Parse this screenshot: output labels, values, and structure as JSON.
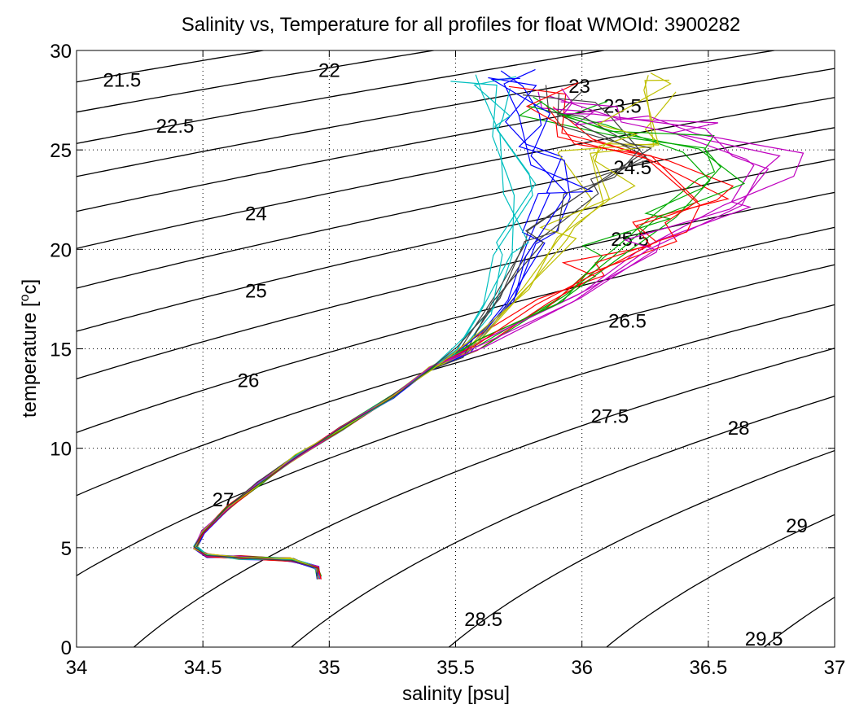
{
  "chart_data": {
    "type": "line",
    "title": "Salinity vs, Temperature for all profiles for float WMOId: 3900282",
    "xlabel": "salinity [psu]",
    "ylabel_main": "temperature [",
    "ylabel_sup": "o",
    "ylabel_end": "c]",
    "xlim": [
      34,
      37
    ],
    "ylim": [
      0,
      30
    ],
    "xticks": [
      34,
      34.5,
      35,
      35.5,
      36,
      36.5,
      37
    ],
    "xtick_labels": [
      "34",
      "34.5",
      "35",
      "35.5",
      "36",
      "36.5",
      "37"
    ],
    "yticks": [
      0,
      5,
      10,
      15,
      20,
      25,
      30
    ],
    "ytick_labels": [
      "0",
      "5",
      "10",
      "15",
      "20",
      "25",
      "30"
    ],
    "grid": true,
    "density_contours": {
      "levels": [
        21.5,
        22,
        22.5,
        23,
        23.5,
        24,
        24.5,
        25,
        25.5,
        26,
        26.5,
        27,
        27.5,
        28,
        28.5,
        29,
        29.5
      ],
      "labels": [
        {
          "text": "21.5",
          "s": 34.18,
          "t": 28.5
        },
        {
          "text": "22",
          "s": 35.0,
          "t": 29.0
        },
        {
          "text": "22.5",
          "s": 34.39,
          "t": 26.2
        },
        {
          "text": "23",
          "s": 35.99,
          "t": 28.2
        },
        {
          "text": "23.5",
          "s": 36.16,
          "t": 27.2
        },
        {
          "text": "24",
          "s": 34.71,
          "t": 21.8
        },
        {
          "text": "24.5",
          "s": 36.2,
          "t": 24.1
        },
        {
          "text": "25",
          "s": 34.71,
          "t": 17.9
        },
        {
          "text": "25.5",
          "s": 36.19,
          "t": 20.5
        },
        {
          "text": "26",
          "s": 34.68,
          "t": 13.4
        },
        {
          "text": "26.5",
          "s": 36.18,
          "t": 16.4
        },
        {
          "text": "27",
          "s": 34.58,
          "t": 7.4
        },
        {
          "text": "27.5",
          "s": 36.11,
          "t": 11.6
        },
        {
          "text": "28",
          "s": 36.62,
          "t": 11.0
        },
        {
          "text": "28.5",
          "s": 35.61,
          "t": 1.4
        },
        {
          "text": "29",
          "s": 36.85,
          "t": 6.1
        },
        {
          "text": "29.5",
          "s": 36.72,
          "t": 0.4
        }
      ]
    },
    "series": [
      {
        "color": "#0000ff",
        "seed": 1
      },
      {
        "color": "#00aa00",
        "seed": 2
      },
      {
        "color": "#ff0000",
        "seed": 3
      },
      {
        "color": "#00bfbf",
        "seed": 4
      },
      {
        "color": "#bf00bf",
        "seed": 5
      },
      {
        "color": "#bfbf00",
        "seed": 6
      },
      {
        "color": "#404040",
        "seed": 7
      },
      {
        "color": "#0000ff",
        "seed": 8
      },
      {
        "color": "#00aa00",
        "seed": 9
      },
      {
        "color": "#ff0000",
        "seed": 10
      },
      {
        "color": "#00bfbf",
        "seed": 11
      },
      {
        "color": "#bf00bf",
        "seed": 12
      },
      {
        "color": "#bfbf00",
        "seed": 13
      },
      {
        "color": "#404040",
        "seed": 14
      },
      {
        "color": "#0000ff",
        "seed": 15
      },
      {
        "color": "#00aa00",
        "seed": 16
      },
      {
        "color": "#ff0000",
        "seed": 17
      },
      {
        "color": "#00bfbf",
        "seed": 18
      },
      {
        "color": "#bf00bf",
        "seed": 19
      },
      {
        "color": "#bfbf00",
        "seed": 20
      },
      {
        "color": "#404040",
        "seed": 21
      },
      {
        "color": "#0000ff",
        "seed": 22
      },
      {
        "color": "#00aa00",
        "seed": 23
      },
      {
        "color": "#ff0000",
        "seed": 24
      },
      {
        "color": "#00bfbf",
        "seed": 25
      },
      {
        "color": "#bf00bf",
        "seed": 26
      },
      {
        "color": "#bfbf00",
        "seed": 27
      },
      {
        "color": "#404040",
        "seed": 28
      }
    ],
    "profile_shape": {
      "deep": [
        [
          34.96,
          3.5
        ],
        [
          34.95,
          4.0
        ],
        [
          34.85,
          4.4
        ],
        [
          34.65,
          4.5
        ],
        [
          34.52,
          4.6
        ],
        [
          34.47,
          5.0
        ],
        [
          34.5,
          5.8
        ],
        [
          34.6,
          7.0
        ],
        [
          34.72,
          8.2
        ],
        [
          34.87,
          9.6
        ],
        [
          35.05,
          11.0
        ],
        [
          35.25,
          12.6
        ],
        [
          35.4,
          14.0
        ]
      ],
      "upper_variants": [
        [
          [
            35.55,
            15.0
          ],
          [
            35.72,
            17.5
          ],
          [
            35.82,
            20.0
          ],
          [
            35.9,
            22.5
          ],
          [
            35.85,
            24.5
          ],
          [
            35.78,
            26.5
          ],
          [
            35.72,
            28.2
          ]
        ],
        [
          [
            35.6,
            15.3
          ],
          [
            35.9,
            17.5
          ],
          [
            36.1,
            19.5
          ],
          [
            36.35,
            21.5
          ],
          [
            36.55,
            23.3
          ],
          [
            36.45,
            25.0
          ],
          [
            36.2,
            26.0
          ],
          [
            35.9,
            27.0
          ]
        ],
        [
          [
            35.58,
            15.2
          ],
          [
            35.85,
            17.3
          ],
          [
            36.05,
            18.8
          ],
          [
            36.3,
            20.5
          ],
          [
            36.5,
            22.5
          ],
          [
            36.3,
            24.5
          ],
          [
            36.0,
            25.5
          ],
          [
            35.8,
            27.5
          ]
        ],
        [
          [
            35.5,
            14.8
          ],
          [
            35.62,
            17.0
          ],
          [
            35.7,
            20.0
          ],
          [
            35.75,
            23.0
          ],
          [
            35.68,
            26.0
          ],
          [
            35.62,
            28.0
          ]
        ],
        [
          [
            35.6,
            15.3
          ],
          [
            36.0,
            17.6
          ],
          [
            36.25,
            19.7
          ],
          [
            36.6,
            22.0
          ],
          [
            36.75,
            24.0
          ],
          [
            36.4,
            25.9
          ],
          [
            36.05,
            26.5
          ],
          [
            35.85,
            27.4
          ]
        ],
        [
          [
            35.55,
            15.0
          ],
          [
            35.78,
            18.0
          ],
          [
            35.95,
            20.5
          ],
          [
            36.1,
            22.5
          ],
          [
            36.0,
            24.5
          ],
          [
            36.2,
            25.5
          ],
          [
            36.28,
            28.2
          ]
        ],
        [
          [
            35.52,
            14.9
          ],
          [
            35.65,
            17.5
          ],
          [
            35.8,
            20.5
          ],
          [
            36.0,
            23.0
          ],
          [
            36.2,
            24.8
          ],
          [
            36.0,
            26.5
          ],
          [
            35.9,
            28.0
          ]
        ]
      ]
    }
  }
}
